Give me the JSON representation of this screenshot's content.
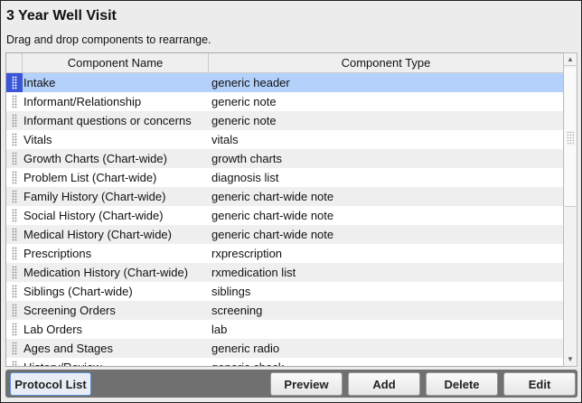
{
  "title": "3 Year Well Visit",
  "subtitle": "Drag and drop components to rearrange.",
  "table": {
    "columns": [
      "Component Name",
      "Component Type"
    ],
    "rows": [
      {
        "name": "Intake",
        "type": "generic header",
        "selected": true
      },
      {
        "name": "Informant/Relationship",
        "type": "generic note"
      },
      {
        "name": "Informant questions or concerns",
        "type": "generic note"
      },
      {
        "name": "Vitals",
        "type": "vitals"
      },
      {
        "name": "Growth Charts (Chart-wide)",
        "type": "growth charts"
      },
      {
        "name": "Problem List (Chart-wide)",
        "type": "diagnosis list"
      },
      {
        "name": "Family History (Chart-wide)",
        "type": "generic chart-wide note"
      },
      {
        "name": "Social History (Chart-wide)",
        "type": "generic chart-wide note"
      },
      {
        "name": "Medical History (Chart-wide)",
        "type": "generic chart-wide note"
      },
      {
        "name": "Prescriptions",
        "type": "rxprescription"
      },
      {
        "name": "Medication History (Chart-wide)",
        "type": "rxmedication list"
      },
      {
        "name": "Siblings (Chart-wide)",
        "type": "siblings"
      },
      {
        "name": "Screening Orders",
        "type": "screening"
      },
      {
        "name": "Lab Orders",
        "type": "lab"
      },
      {
        "name": "Ages and Stages",
        "type": "generic radio"
      },
      {
        "name": "History/Review",
        "type": "generic check"
      }
    ]
  },
  "buttons": {
    "protocol_list": "Protocol List",
    "preview": "Preview",
    "add": "Add",
    "delete": "Delete",
    "edit": "Edit"
  },
  "colors": {
    "selection": "#b3d1fb",
    "selected_grip": "#3a55d6",
    "button_bar": "#707070"
  }
}
